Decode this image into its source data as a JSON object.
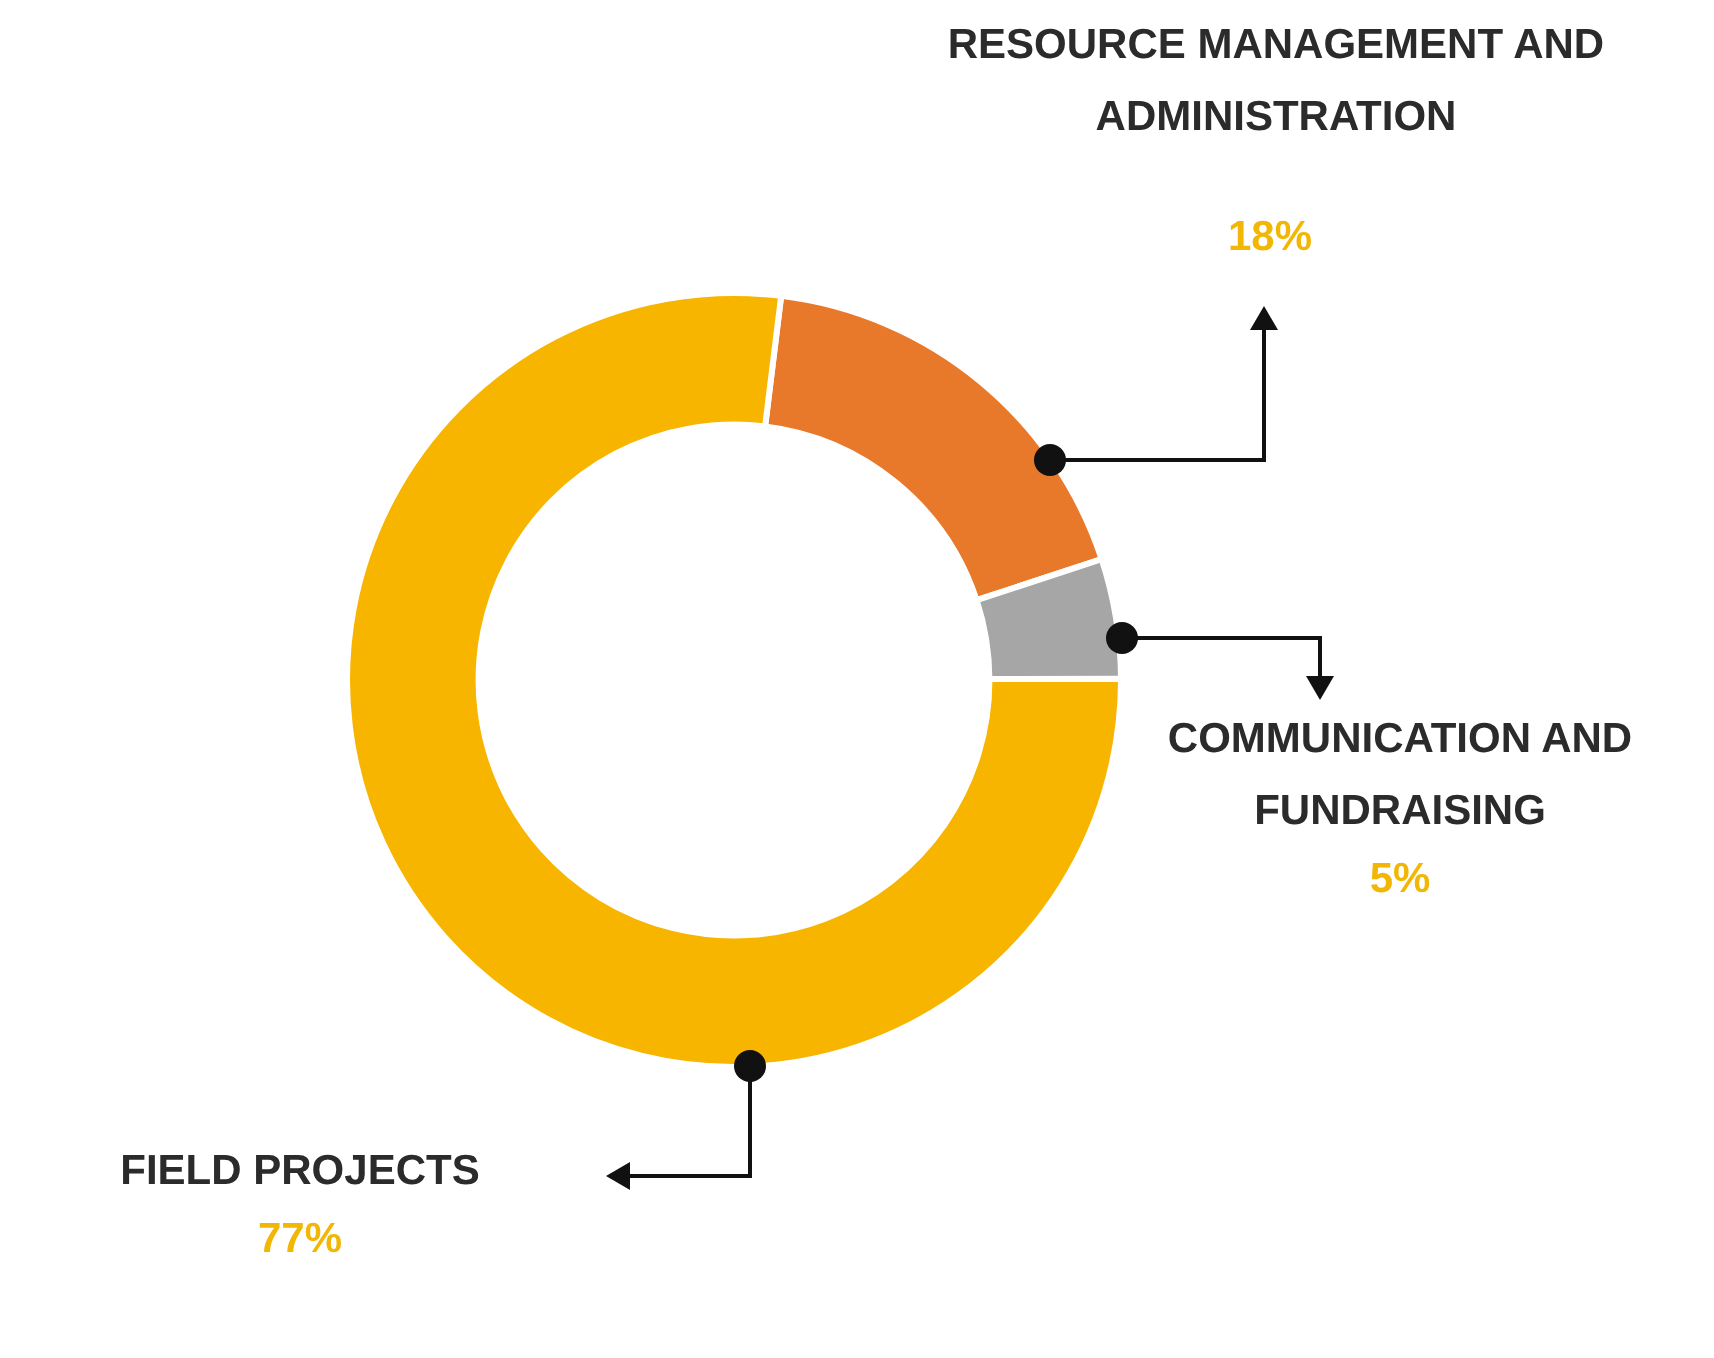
{
  "chart_data": {
    "type": "donut",
    "categories": [
      "RESOURCE MANAGEMENT AND ADMINISTRATION",
      "COMMUNICATION AND FUNDRAISING",
      "FIELD PROJECTS"
    ],
    "values": [
      18,
      5,
      77
    ],
    "colors": [
      "#e8782a",
      "#a6a6a6",
      "#f7b500"
    ],
    "value_labels": [
      "18%",
      "5%",
      "77%"
    ],
    "legend": false
  }
}
